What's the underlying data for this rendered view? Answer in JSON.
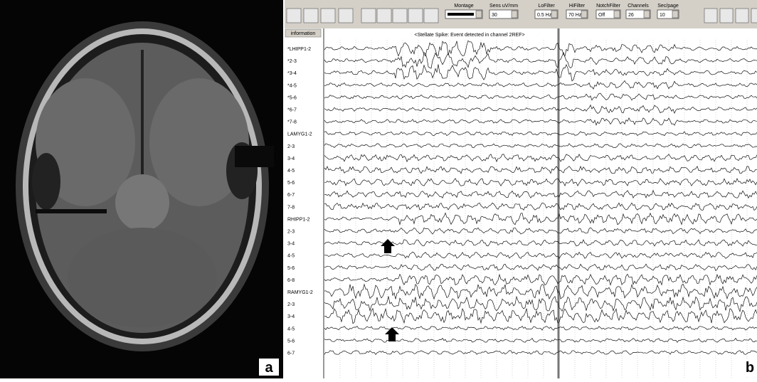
{
  "panels": {
    "a": {
      "label": "a"
    },
    "b": {
      "label": "b"
    }
  },
  "toolbar": {
    "controls": [
      {
        "label": "Montage",
        "value": ""
      },
      {
        "label": "Sens uV/mm",
        "value": "30"
      },
      {
        "label": "LoFilter",
        "value": "0.5 Hz"
      },
      {
        "label": "HiFilter",
        "value": "70 Hz"
      },
      {
        "label": "NotchFilter",
        "value": "Off"
      },
      {
        "label": "Channels",
        "value": "26"
      },
      {
        "label": "Sec/page",
        "value": "10"
      }
    ],
    "info_button": "information",
    "event_text": "<Stellate Spike: Event detected in channel 2REF>"
  },
  "channels": [
    "*LHIPP1-2",
    "*2-3",
    "*3-4",
    "*4-5",
    "*5-6",
    "*6-7",
    "*7-8",
    "LAMYG1-2",
    "2-3",
    "3-4",
    "4-5",
    "5-6",
    "6-7",
    "7-8",
    "RHIPP1-2",
    "2-3",
    "3-4",
    "4-5",
    "5-6",
    "6-8",
    "RAMYG1-2",
    "2-3",
    "3-4",
    "4-5",
    "5-6",
    "6-7"
  ]
}
